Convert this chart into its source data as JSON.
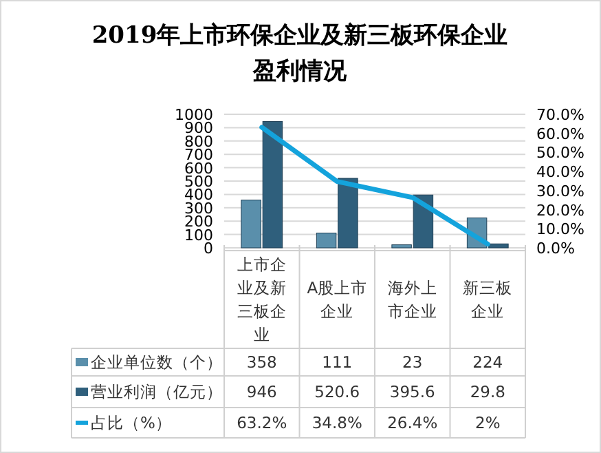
{
  "chart_data": {
    "type": "bar",
    "title": "2019年上市环保企业及新三板环保企业盈利情况",
    "categories": [
      "上市企业及新三板企业",
      "A股上市企业",
      "海外上市企业",
      "新三板企业"
    ],
    "series": [
      {
        "name": "企业单位数（个）",
        "color": "#5a8fab",
        "values": [
          358,
          111,
          23,
          224
        ],
        "value_labels": [
          "358",
          "111",
          "23",
          "224"
        ]
      },
      {
        "name": "营业利润（亿元）",
        "color": "#2f5f7c",
        "values": [
          946,
          520.6,
          395.6,
          29.8
        ],
        "value_labels": [
          "946",
          "520.6",
          "395.6",
          "29.8"
        ]
      },
      {
        "name": "占比（%）",
        "type": "line",
        "axis": "y2",
        "color": "#14a3dc",
        "marker": "none",
        "values": [
          63.2,
          34.8,
          26.4,
          2
        ],
        "value_labels": [
          "63.2%",
          "34.8%",
          "26.4%",
          "2%"
        ]
      }
    ],
    "ylim": [
      0,
      1000
    ],
    "yticks": [
      0,
      100,
      200,
      300,
      400,
      500,
      600,
      700,
      800,
      900,
      1000
    ],
    "y2lim": [
      0,
      70
    ],
    "y2ticks": [
      {
        "value": 0,
        "label": "0.0%"
      },
      {
        "value": 10,
        "label": "10.0%"
      },
      {
        "value": 20,
        "label": "20.0%"
      },
      {
        "value": 30,
        "label": "30.0%"
      },
      {
        "value": 40,
        "label": "40.0%"
      },
      {
        "value": 50,
        "label": "50.0%"
      },
      {
        "value": 60,
        "label": "60.0%"
      },
      {
        "value": 70,
        "label": "70.0%"
      }
    ],
    "grid": "y",
    "legend": "bottom"
  }
}
